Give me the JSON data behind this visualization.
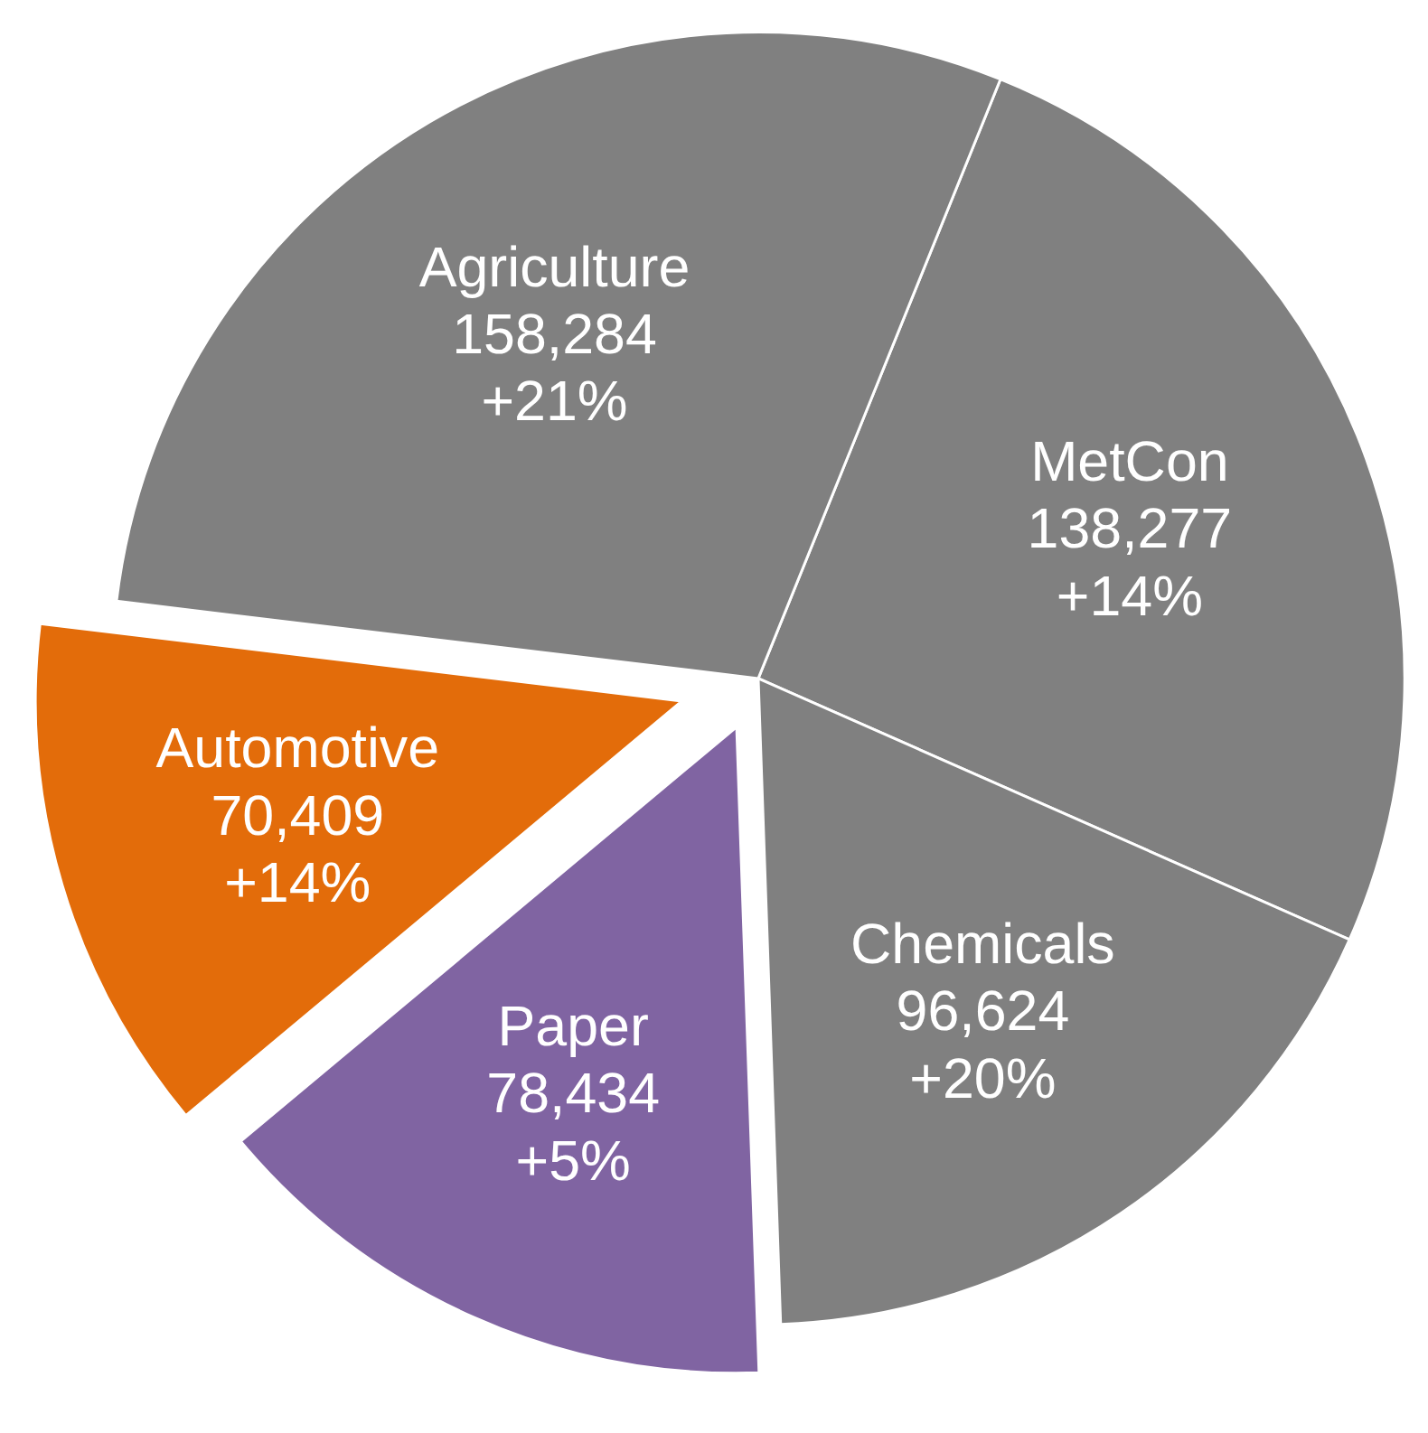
{
  "chart_data": {
    "type": "pie",
    "categories": [
      "MetCon",
      "Chemicals",
      "Paper",
      "Automotive",
      "Agriculture"
    ],
    "values": [
      138277,
      96624,
      78434,
      70409,
      158284
    ],
    "colors": [
      "#808080",
      "#808080",
      "#8064a2",
      "#e36c0a",
      "#808080"
    ],
    "value_labels": [
      "138,277\n+14%",
      "96,624\n+20%",
      "78,434\n+5%",
      "70,409\n+14%",
      "158,284\n+21%"
    ]
  }
}
